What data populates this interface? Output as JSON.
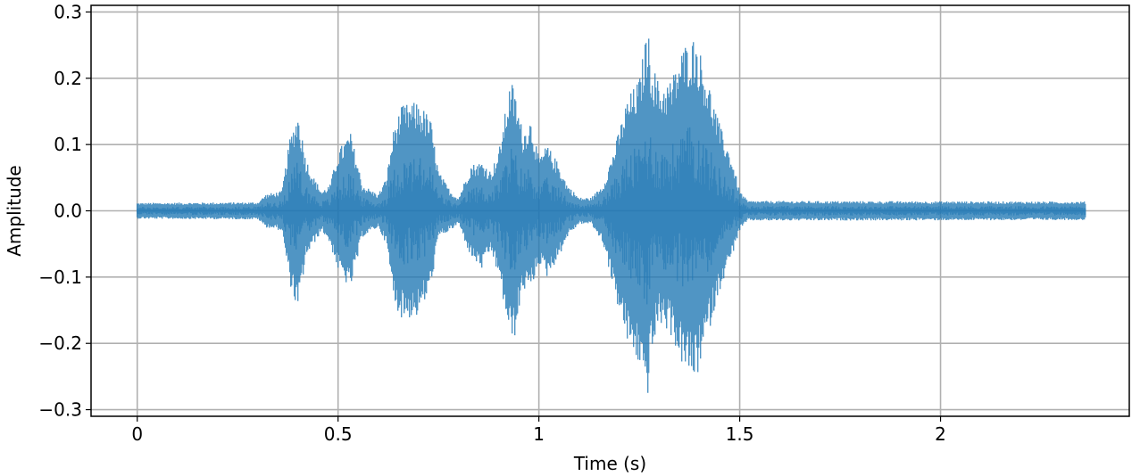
{
  "chart_data": {
    "type": "line",
    "title": "",
    "xlabel": "Time (s)",
    "ylabel": "Amplitude",
    "xlim": [
      -0.115,
      2.47
    ],
    "ylim": [
      -0.31,
      0.31
    ],
    "grid": true,
    "legend": "none",
    "xticks": [
      0,
      0.5,
      1,
      1.5,
      2
    ],
    "xtick_labels": [
      "0",
      "0.5",
      "1",
      "1.5",
      "2"
    ],
    "yticks": [
      0.3,
      0.2,
      0.1,
      0.0,
      -0.1,
      -0.2,
      -0.3
    ],
    "ytick_labels": [
      "0.3",
      "0.2",
      "0.1",
      "0.0",
      "−0.1",
      "−0.2",
      "−0.3"
    ],
    "series": [
      {
        "color": "#1f77b4",
        "duration_s": 2.36,
        "envelope": {
          "t": [
            0,
            0.3,
            0.32,
            0.36,
            0.38,
            0.4,
            0.42,
            0.44,
            0.46,
            0.48,
            0.5,
            0.53,
            0.55,
            0.56,
            0.6,
            0.62,
            0.64,
            0.66,
            0.7,
            0.73,
            0.75,
            0.78,
            0.8,
            0.83,
            0.86,
            0.88,
            0.9,
            0.93,
            0.94,
            0.96,
            0.98,
            1.0,
            1.02,
            1.05,
            1.07,
            1.1,
            1.13,
            1.16,
            1.19,
            1.22,
            1.25,
            1.27,
            1.28,
            1.3,
            1.33,
            1.36,
            1.39,
            1.42,
            1.45,
            1.48,
            1.5,
            1.52,
            2.36
          ],
          "pos": [
            0.012,
            0.013,
            0.025,
            0.03,
            0.11,
            0.15,
            0.08,
            0.05,
            0.03,
            0.04,
            0.09,
            0.12,
            0.07,
            0.04,
            0.025,
            0.05,
            0.13,
            0.16,
            0.165,
            0.14,
            0.06,
            0.03,
            0.02,
            0.07,
            0.075,
            0.06,
            0.09,
            0.2,
            0.18,
            0.12,
            0.14,
            0.08,
            0.1,
            0.07,
            0.04,
            0.02,
            0.02,
            0.04,
            0.1,
            0.17,
            0.2,
            0.28,
            0.23,
            0.19,
            0.2,
            0.25,
            0.265,
            0.2,
            0.13,
            0.08,
            0.03,
            0.015,
            0.014
          ],
          "neg": [
            -0.012,
            -0.013,
            -0.025,
            -0.03,
            -0.11,
            -0.155,
            -0.07,
            -0.05,
            -0.03,
            -0.05,
            -0.09,
            -0.12,
            -0.07,
            -0.04,
            -0.025,
            -0.05,
            -0.14,
            -0.165,
            -0.16,
            -0.12,
            -0.04,
            -0.03,
            -0.02,
            -0.07,
            -0.09,
            -0.06,
            -0.1,
            -0.2,
            -0.19,
            -0.12,
            -0.12,
            -0.08,
            -0.1,
            -0.07,
            -0.04,
            -0.02,
            -0.02,
            -0.05,
            -0.13,
            -0.2,
            -0.235,
            -0.285,
            -0.22,
            -0.17,
            -0.19,
            -0.24,
            -0.26,
            -0.19,
            -0.12,
            -0.07,
            -0.03,
            -0.015,
            -0.014
          ]
        }
      }
    ]
  }
}
